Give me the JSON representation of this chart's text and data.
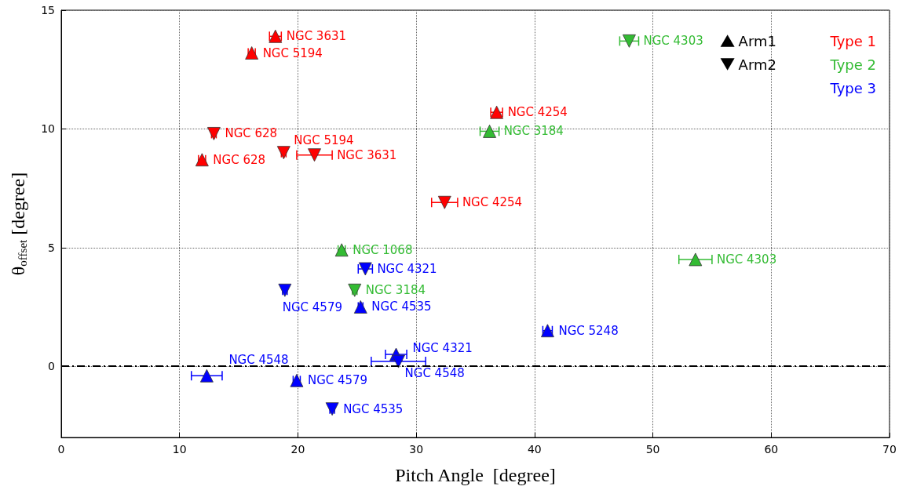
{
  "chart_data": {
    "type": "scatter",
    "xlabel": "Pitch Angle  [degree]",
    "ylabel": "θ$_{offset}$ [degree]",
    "xlim": [
      0,
      70
    ],
    "xticks": [
      0,
      10,
      20,
      30,
      40,
      50,
      60,
      70
    ],
    "ylim": [
      -3,
      15
    ],
    "yticks": [
      0,
      5,
      10,
      15
    ],
    "grid": true,
    "legend": "top right",
    "annotations": [
      "Type 1",
      "Type 2",
      "Type 3"
    ],
    "ref_lines": [
      {
        "axis": "y",
        "value": 0,
        "color": "#000000",
        "line_style": "dashed"
      }
    ],
    "series": [
      {
        "name": "Arm1",
        "color": "#000000",
        "marker": "triangle"
      },
      {
        "name": "Arm2",
        "color": "#000000",
        "marker": "triangle_down"
      },
      {
        "color": "#ff0000",
        "marker": "triangle",
        "x": [
          18.1,
          16.1,
          11.9,
          36.8
        ],
        "values": [
          13.9,
          13.2,
          8.7,
          10.7
        ],
        "xerrors": [
          0.5,
          0.3,
          0.3,
          0.5
        ],
        "value_labels": [
          "NGC 3631",
          "NGC 5194",
          "NGC 628",
          "NGC 4254"
        ]
      },
      {
        "color": "#ff0000",
        "marker": "triangle_down",
        "x": [
          12.9,
          18.8,
          21.4,
          32.4
        ],
        "values": [
          9.8,
          9.0,
          8.9,
          6.9
        ],
        "xerrors": [
          0.2,
          0.2,
          1.5,
          1.1
        ],
        "value_labels": [
          "NGC 628",
          "NGC 5194",
          "NGC 3631",
          "NGC 4254"
        ]
      },
      {
        "color": "#33bb33",
        "marker": "triangle",
        "x": [
          36.2,
          23.7,
          53.6
        ],
        "values": [
          9.9,
          4.9,
          4.5
        ],
        "xerrors": [
          0.8,
          0.3,
          1.4
        ],
        "value_labels": [
          "NGC 3184",
          "NGC 1068",
          "NGC 4303"
        ]
      },
      {
        "color": "#33bb33",
        "marker": "triangle_down",
        "x": [
          48.0,
          24.8
        ],
        "values": [
          13.7,
          3.2
        ],
        "xerrors": [
          0.8,
          0.2
        ],
        "value_labels": [
          "NGC 4303",
          "NGC 3184"
        ]
      },
      {
        "color": "#0000ff",
        "marker": "triangle",
        "x": [
          25.3,
          41.1,
          28.3,
          12.3,
          19.9
        ],
        "values": [
          2.5,
          1.5,
          0.5,
          -0.4,
          -0.6
        ],
        "xerrors": [
          0.2,
          0.4,
          0.9,
          1.3,
          0.3
        ],
        "value_labels": [
          "NGC 4535",
          "NGC 5248",
          "NGC 4321",
          "NGC 4548",
          "NGC 4579"
        ]
      },
      {
        "color": "#0000ff",
        "marker": "triangle_down",
        "x": [
          25.7,
          18.9,
          28.5,
          22.9
        ],
        "values": [
          4.1,
          3.2,
          0.2,
          -1.8
        ],
        "xerrors": [
          0.6,
          0.2,
          2.3,
          0.2
        ],
        "value_labels": [
          "NGC 4321",
          "NGC 4579",
          "NGC 4548",
          "NGC 4535"
        ]
      }
    ]
  }
}
